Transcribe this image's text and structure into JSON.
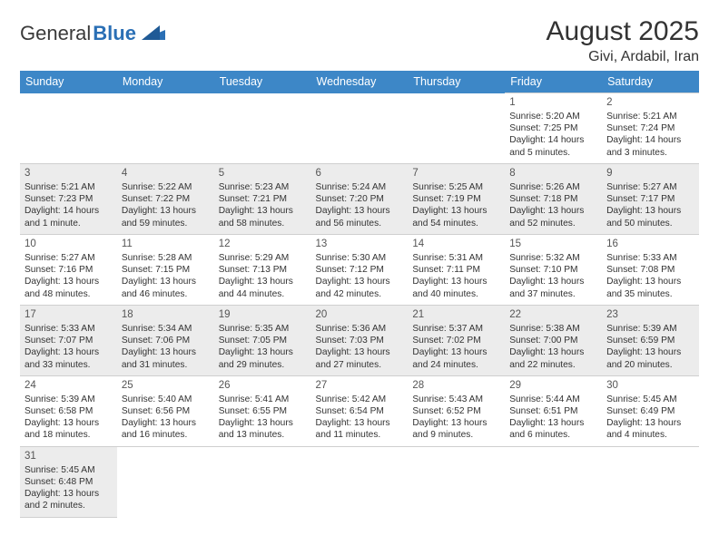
{
  "logo": {
    "text1": "General",
    "text2": "Blue"
  },
  "title": "August 2025",
  "location": "Givi, Ardabil, Iran",
  "colors": {
    "header_bg": "#3d87c7",
    "header_text": "#ffffff",
    "shaded_bg": "#ececec",
    "border": "#cfcfcf",
    "body_text": "#333333",
    "logo_text": "#3a3a3a",
    "logo_blue": "#2a6fb5"
  },
  "days": [
    "Sunday",
    "Monday",
    "Tuesday",
    "Wednesday",
    "Thursday",
    "Friday",
    "Saturday"
  ],
  "weeks": [
    [
      null,
      null,
      null,
      null,
      null,
      {
        "n": "1",
        "sr": "Sunrise: 5:20 AM",
        "ss": "Sunset: 7:25 PM",
        "dl": "Daylight: 14 hours and 5 minutes."
      },
      {
        "n": "2",
        "sr": "Sunrise: 5:21 AM",
        "ss": "Sunset: 7:24 PM",
        "dl": "Daylight: 14 hours and 3 minutes."
      }
    ],
    [
      {
        "n": "3",
        "sr": "Sunrise: 5:21 AM",
        "ss": "Sunset: 7:23 PM",
        "dl": "Daylight: 14 hours and 1 minute."
      },
      {
        "n": "4",
        "sr": "Sunrise: 5:22 AM",
        "ss": "Sunset: 7:22 PM",
        "dl": "Daylight: 13 hours and 59 minutes."
      },
      {
        "n": "5",
        "sr": "Sunrise: 5:23 AM",
        "ss": "Sunset: 7:21 PM",
        "dl": "Daylight: 13 hours and 58 minutes."
      },
      {
        "n": "6",
        "sr": "Sunrise: 5:24 AM",
        "ss": "Sunset: 7:20 PM",
        "dl": "Daylight: 13 hours and 56 minutes."
      },
      {
        "n": "7",
        "sr": "Sunrise: 5:25 AM",
        "ss": "Sunset: 7:19 PM",
        "dl": "Daylight: 13 hours and 54 minutes."
      },
      {
        "n": "8",
        "sr": "Sunrise: 5:26 AM",
        "ss": "Sunset: 7:18 PM",
        "dl": "Daylight: 13 hours and 52 minutes."
      },
      {
        "n": "9",
        "sr": "Sunrise: 5:27 AM",
        "ss": "Sunset: 7:17 PM",
        "dl": "Daylight: 13 hours and 50 minutes."
      }
    ],
    [
      {
        "n": "10",
        "sr": "Sunrise: 5:27 AM",
        "ss": "Sunset: 7:16 PM",
        "dl": "Daylight: 13 hours and 48 minutes."
      },
      {
        "n": "11",
        "sr": "Sunrise: 5:28 AM",
        "ss": "Sunset: 7:15 PM",
        "dl": "Daylight: 13 hours and 46 minutes."
      },
      {
        "n": "12",
        "sr": "Sunrise: 5:29 AM",
        "ss": "Sunset: 7:13 PM",
        "dl": "Daylight: 13 hours and 44 minutes."
      },
      {
        "n": "13",
        "sr": "Sunrise: 5:30 AM",
        "ss": "Sunset: 7:12 PM",
        "dl": "Daylight: 13 hours and 42 minutes."
      },
      {
        "n": "14",
        "sr": "Sunrise: 5:31 AM",
        "ss": "Sunset: 7:11 PM",
        "dl": "Daylight: 13 hours and 40 minutes."
      },
      {
        "n": "15",
        "sr": "Sunrise: 5:32 AM",
        "ss": "Sunset: 7:10 PM",
        "dl": "Daylight: 13 hours and 37 minutes."
      },
      {
        "n": "16",
        "sr": "Sunrise: 5:33 AM",
        "ss": "Sunset: 7:08 PM",
        "dl": "Daylight: 13 hours and 35 minutes."
      }
    ],
    [
      {
        "n": "17",
        "sr": "Sunrise: 5:33 AM",
        "ss": "Sunset: 7:07 PM",
        "dl": "Daylight: 13 hours and 33 minutes."
      },
      {
        "n": "18",
        "sr": "Sunrise: 5:34 AM",
        "ss": "Sunset: 7:06 PM",
        "dl": "Daylight: 13 hours and 31 minutes."
      },
      {
        "n": "19",
        "sr": "Sunrise: 5:35 AM",
        "ss": "Sunset: 7:05 PM",
        "dl": "Daylight: 13 hours and 29 minutes."
      },
      {
        "n": "20",
        "sr": "Sunrise: 5:36 AM",
        "ss": "Sunset: 7:03 PM",
        "dl": "Daylight: 13 hours and 27 minutes."
      },
      {
        "n": "21",
        "sr": "Sunrise: 5:37 AM",
        "ss": "Sunset: 7:02 PM",
        "dl": "Daylight: 13 hours and 24 minutes."
      },
      {
        "n": "22",
        "sr": "Sunrise: 5:38 AM",
        "ss": "Sunset: 7:00 PM",
        "dl": "Daylight: 13 hours and 22 minutes."
      },
      {
        "n": "23",
        "sr": "Sunrise: 5:39 AM",
        "ss": "Sunset: 6:59 PM",
        "dl": "Daylight: 13 hours and 20 minutes."
      }
    ],
    [
      {
        "n": "24",
        "sr": "Sunrise: 5:39 AM",
        "ss": "Sunset: 6:58 PM",
        "dl": "Daylight: 13 hours and 18 minutes."
      },
      {
        "n": "25",
        "sr": "Sunrise: 5:40 AM",
        "ss": "Sunset: 6:56 PM",
        "dl": "Daylight: 13 hours and 16 minutes."
      },
      {
        "n": "26",
        "sr": "Sunrise: 5:41 AM",
        "ss": "Sunset: 6:55 PM",
        "dl": "Daylight: 13 hours and 13 minutes."
      },
      {
        "n": "27",
        "sr": "Sunrise: 5:42 AM",
        "ss": "Sunset: 6:54 PM",
        "dl": "Daylight: 13 hours and 11 minutes."
      },
      {
        "n": "28",
        "sr": "Sunrise: 5:43 AM",
        "ss": "Sunset: 6:52 PM",
        "dl": "Daylight: 13 hours and 9 minutes."
      },
      {
        "n": "29",
        "sr": "Sunrise: 5:44 AM",
        "ss": "Sunset: 6:51 PM",
        "dl": "Daylight: 13 hours and 6 minutes."
      },
      {
        "n": "30",
        "sr": "Sunrise: 5:45 AM",
        "ss": "Sunset: 6:49 PM",
        "dl": "Daylight: 13 hours and 4 minutes."
      }
    ],
    [
      {
        "n": "31",
        "sr": "Sunrise: 5:45 AM",
        "ss": "Sunset: 6:48 PM",
        "dl": "Daylight: 13 hours and 2 minutes."
      },
      null,
      null,
      null,
      null,
      null,
      null
    ]
  ]
}
